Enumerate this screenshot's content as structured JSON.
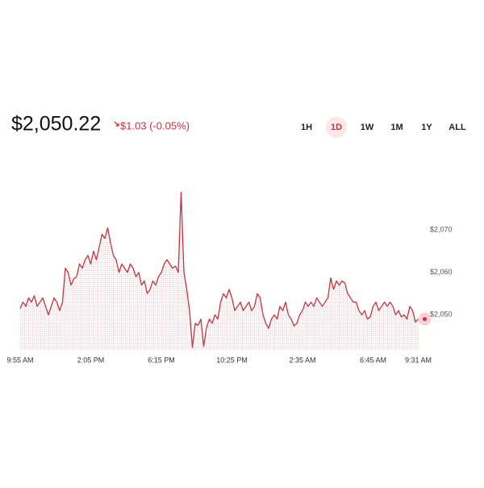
{
  "header": {
    "price": "$2,050.22",
    "change": "$1.03 (-0.05%)",
    "ranges": [
      "1H",
      "1D",
      "1W",
      "1M",
      "1Y",
      "ALL"
    ],
    "selected_range": "1D"
  },
  "chart_data": {
    "type": "line",
    "color": "#c8323f",
    "categories": [
      "9:55 AM",
      null,
      null,
      null,
      null,
      null,
      null,
      null,
      null,
      null,
      null,
      null,
      null,
      null,
      null,
      null,
      null,
      null,
      null,
      null,
      null,
      null,
      null,
      null,
      null,
      "2:05 PM",
      null,
      null,
      null,
      null,
      null,
      null,
      null,
      null,
      null,
      null,
      null,
      null,
      null,
      null,
      null,
      null,
      null,
      null,
      null,
      null,
      null,
      null,
      null,
      null,
      "6:15 PM",
      null,
      null,
      null,
      null,
      null,
      null,
      null,
      null,
      null,
      null,
      null,
      null,
      null,
      null,
      null,
      null,
      null,
      null,
      null,
      null,
      null,
      null,
      null,
      null,
      "10:25 PM",
      null,
      null,
      null,
      null,
      null,
      null,
      null,
      null,
      null,
      null,
      null,
      null,
      null,
      null,
      null,
      null,
      null,
      null,
      null,
      null,
      null,
      null,
      null,
      null,
      "2:35 AM",
      null,
      null,
      null,
      null,
      null,
      null,
      null,
      null,
      null,
      null,
      null,
      null,
      null,
      null,
      null,
      null,
      null,
      null,
      null,
      null,
      null,
      null,
      null,
      null,
      "6:45 AM",
      null,
      null,
      null,
      null,
      null,
      null,
      null,
      null,
      null,
      null,
      null,
      null,
      null,
      null,
      null,
      "9:31 AM"
    ],
    "series": [
      {
        "values": [
          2051.5,
          2053,
          2052,
          2054,
          2053,
          2054.5,
          2052,
          2053,
          2054,
          2052,
          2050,
          2052,
          2054,
          2053,
          2051,
          2053,
          2061,
          2060,
          2057,
          2058.5,
          2059,
          2062,
          2061,
          2063,
          2064,
          2062,
          2065,
          2063,
          2066,
          2069,
          2068,
          2070.5,
          2067,
          2064,
          2063,
          2060,
          2062,
          2061,
          2060,
          2062,
          2061,
          2059,
          2060,
          2057,
          2058,
          2055,
          2056,
          2058,
          2057,
          2059,
          2060,
          2062,
          2063,
          2062,
          2061,
          2061.5,
          2060,
          2078.9,
          2060,
          2056,
          2051,
          2042.3,
          2048,
          2047.5,
          2049,
          2042.6,
          2047,
          2049,
          2048,
          2050,
          2049,
          2053,
          2055,
          2054,
          2056,
          2054,
          2051,
          2052,
          2053,
          2051,
          2052,
          2053,
          2051,
          2052,
          2055,
          2054,
          2050,
          2048,
          2046.8,
          2049,
          2050,
          2049,
          2052,
          2051,
          2053,
          2050,
          2049,
          2047.4,
          2048,
          2050,
          2051,
          2053,
          2052,
          2053,
          2052,
          2054,
          2053,
          2052,
          2053,
          2054,
          2058.7,
          2056,
          2058,
          2057,
          2058,
          2057.5,
          2055,
          2054,
          2053,
          2053,
          2051,
          2050,
          2051,
          2049,
          2049.5,
          2052,
          2053,
          2051,
          2052,
          2053,
          2052,
          2053,
          2052,
          2050,
          2051,
          2049.5,
          2050,
          2049,
          2052,
          2051,
          2048.3,
          2049
        ]
      }
    ],
    "ylim": [
      2041.5,
      2080.5
    ],
    "yticks": [
      {
        "value": 2050,
        "label": "$2,050"
      },
      {
        "value": 2060,
        "label": "$2,060"
      },
      {
        "value": 2070,
        "label": "$2,070"
      }
    ]
  }
}
